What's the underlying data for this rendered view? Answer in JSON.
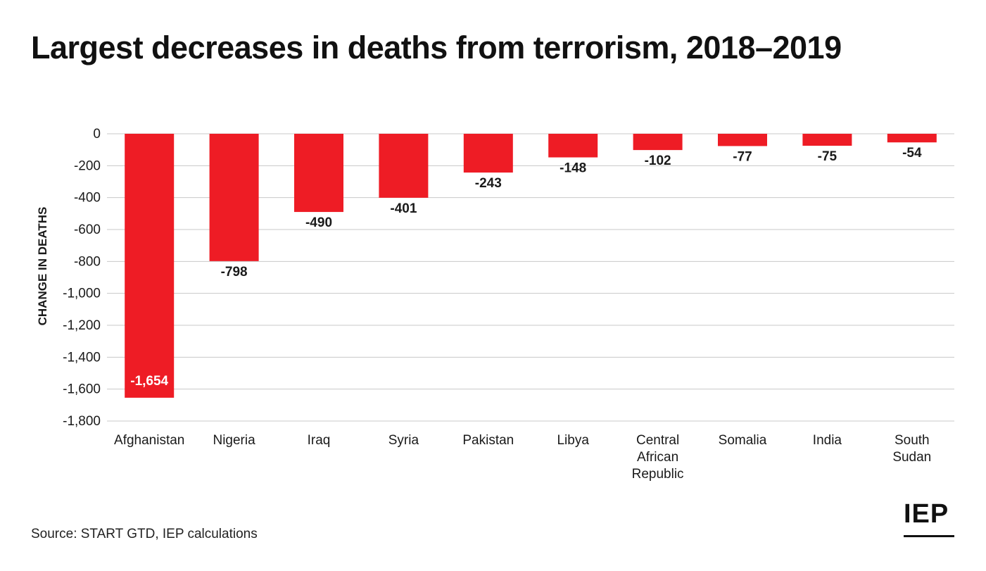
{
  "header": {
    "title": "Largest decreases in deaths from terrorism, 2018–2019"
  },
  "footer": {
    "source": "Source: START GTD, IEP calculations",
    "logo_text": "IEP"
  },
  "colors": {
    "bar": "#ee1c25",
    "grid": "#c8c8c8",
    "text": "#1a1a1a",
    "inside_label": "#ffffff"
  },
  "chart_data": {
    "type": "bar",
    "title": "Largest decreases in deaths from terrorism, 2018–2019",
    "xlabel": "",
    "ylabel": "CHANGE IN DEATHS",
    "ylim": [
      -1800,
      0
    ],
    "yticks": [
      0,
      -200,
      -400,
      -600,
      -800,
      -1000,
      -1200,
      -1400,
      -1600,
      -1800
    ],
    "ytick_labels": [
      "0",
      "-200",
      "-400",
      "-600",
      "-800",
      "-1,000",
      "-1,200",
      "-1,400",
      "-1,600",
      "-1,800"
    ],
    "grid": true,
    "legend": "none",
    "categories": [
      [
        "Afghanistan"
      ],
      [
        "Nigeria"
      ],
      [
        "Iraq"
      ],
      [
        "Syria"
      ],
      [
        "Pakistan"
      ],
      [
        "Libya"
      ],
      [
        "Central",
        "African",
        "Republic"
      ],
      [
        "Somalia"
      ],
      [
        "India"
      ],
      [
        "South",
        "Sudan"
      ]
    ],
    "values": [
      -1654,
      -798,
      -490,
      -401,
      -243,
      -148,
      -102,
      -77,
      -75,
      -54
    ],
    "value_labels": [
      "-1,654",
      "-798",
      "-490",
      "-401",
      "-243",
      "-148",
      "-102",
      "-77",
      "-75",
      "-54"
    ]
  }
}
